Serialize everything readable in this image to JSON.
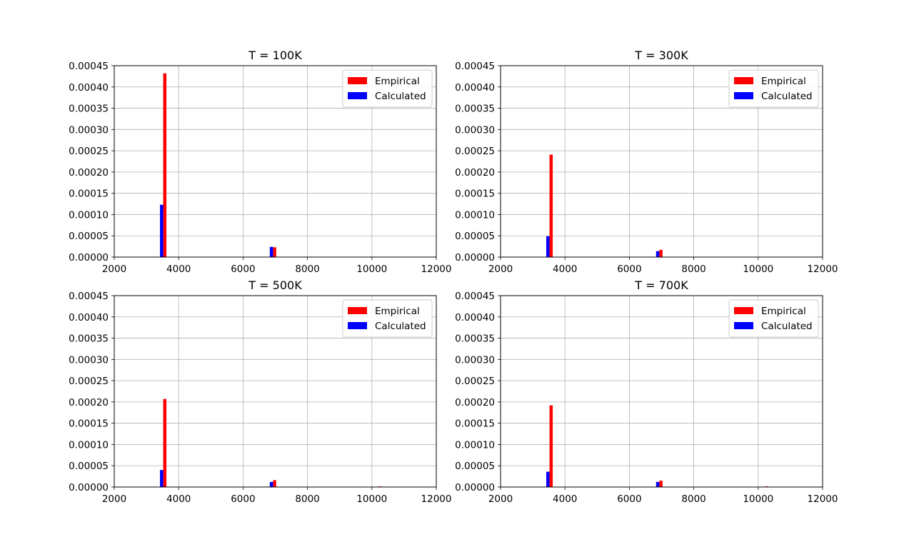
{
  "chart_data": [
    {
      "type": "bar",
      "title": "T = 100K",
      "xlabel": "",
      "ylabel": "",
      "xlim": [
        2000,
        12000
      ],
      "ylim": [
        0,
        0.00045
      ],
      "xticks": [
        "2000",
        "4000",
        "6000",
        "8000",
        "10000",
        "12000"
      ],
      "yticks": [
        "0.00000",
        "0.00005",
        "0.00010",
        "0.00015",
        "0.00020",
        "0.00025",
        "0.00030",
        "0.00035",
        "0.00040",
        "0.00045"
      ],
      "grid": true,
      "legend": "top-right",
      "series": [
        {
          "name": "Empirical",
          "color": "#ff0000",
          "points": [
            [
              3570,
              0.000432
            ],
            [
              6980,
              2.3e-05
            ],
            [
              10260,
              5e-07
            ]
          ]
        },
        {
          "name": "Calculated",
          "color": "#0000ff",
          "points": [
            [
              3470,
              0.000123
            ],
            [
              6880,
              2.4e-05
            ],
            [
              10160,
              3e-07
            ]
          ]
        }
      ]
    },
    {
      "type": "bar",
      "title": "T = 300K",
      "xlabel": "",
      "ylabel": "",
      "xlim": [
        2000,
        12000
      ],
      "ylim": [
        0,
        0.00045
      ],
      "xticks": [
        "2000",
        "4000",
        "6000",
        "8000",
        "10000",
        "12000"
      ],
      "yticks": [
        "0.00000",
        "0.00005",
        "0.00010",
        "0.00015",
        "0.00020",
        "0.00025",
        "0.00030",
        "0.00035",
        "0.00040",
        "0.00045"
      ],
      "grid": true,
      "legend": "top-right",
      "series": [
        {
          "name": "Empirical",
          "color": "#ff0000",
          "points": [
            [
              3570,
              0.000241
            ],
            [
              6980,
              1.7e-05
            ],
            [
              10260,
              7e-07
            ]
          ]
        },
        {
          "name": "Calculated",
          "color": "#0000ff",
          "points": [
            [
              3470,
              4.9e-05
            ],
            [
              6880,
              1.4e-05
            ],
            [
              10160,
              3e-07
            ]
          ]
        }
      ]
    },
    {
      "type": "bar",
      "title": "T = 500K",
      "xlabel": "",
      "ylabel": "",
      "xlim": [
        2000,
        12000
      ],
      "ylim": [
        0,
        0.00045
      ],
      "xticks": [
        "2000",
        "4000",
        "6000",
        "8000",
        "10000",
        "12000"
      ],
      "yticks": [
        "0.00000",
        "0.00005",
        "0.00010",
        "0.00015",
        "0.00020",
        "0.00025",
        "0.00030",
        "0.00035",
        "0.00040",
        "0.00045"
      ],
      "grid": true,
      "legend": "top-right",
      "series": [
        {
          "name": "Empirical",
          "color": "#ff0000",
          "points": [
            [
              3570,
              0.000207
            ],
            [
              6980,
              1.6e-05
            ],
            [
              10260,
              1.5e-06
            ]
          ]
        },
        {
          "name": "Calculated",
          "color": "#0000ff",
          "points": [
            [
              3470,
              4e-05
            ],
            [
              6880,
              1.2e-05
            ],
            [
              10160,
              5e-07
            ]
          ]
        }
      ]
    },
    {
      "type": "bar",
      "title": "T = 700K",
      "xlabel": "",
      "ylabel": "",
      "xlim": [
        2000,
        12000
      ],
      "ylim": [
        0,
        0.00045
      ],
      "xticks": [
        "2000",
        "4000",
        "6000",
        "8000",
        "10000",
        "12000"
      ],
      "yticks": [
        "0.00000",
        "0.00005",
        "0.00010",
        "0.00015",
        "0.00020",
        "0.00025",
        "0.00030",
        "0.00035",
        "0.00040",
        "0.00045"
      ],
      "grid": true,
      "legend": "top-right",
      "series": [
        {
          "name": "Empirical",
          "color": "#ff0000",
          "points": [
            [
              3570,
              0.000192
            ],
            [
              6980,
              1.5e-05
            ],
            [
              10260,
              1.5e-06
            ]
          ]
        },
        {
          "name": "Calculated",
          "color": "#0000ff",
          "points": [
            [
              3470,
              3.6e-05
            ],
            [
              6880,
              1.2e-05
            ],
            [
              10160,
              5e-07
            ]
          ]
        }
      ]
    }
  ]
}
